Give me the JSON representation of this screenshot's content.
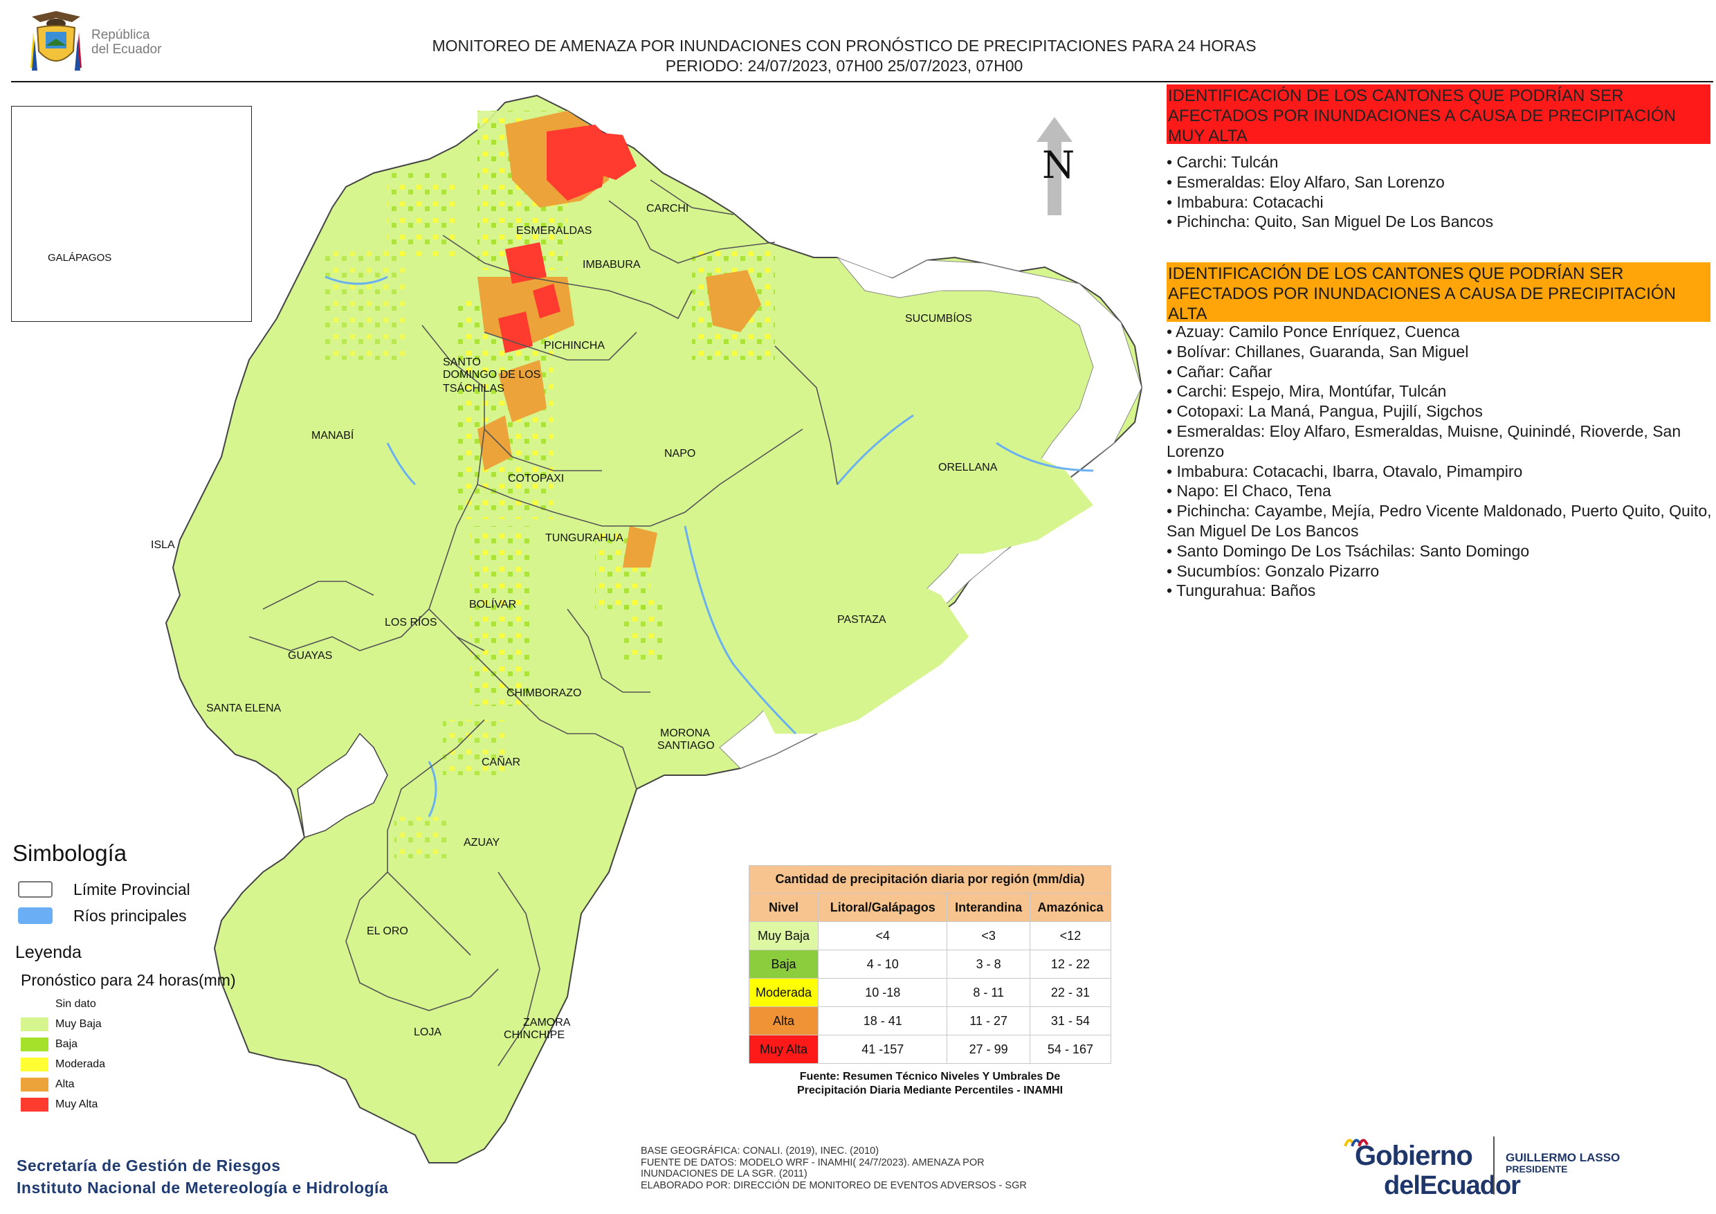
{
  "header": {
    "logo_line1": "República",
    "logo_line2": "del Ecuador",
    "title_line1": "MONITOREO DE AMENAZA POR INUNDACIONES  CON PRONÓSTICO DE  PRECIPITACIONES PARA 24 HORAS",
    "title_line2": "PERIODO: 24/07/2023, 07H00 25/07/2023, 07H00"
  },
  "map": {
    "north_label": "N",
    "inset_label": "GALÁPAGOS",
    "province_labels": {
      "esmeraldas": "ESMERALDAS",
      "carchi": "CARCHI",
      "imbabura": "IMBABURA",
      "sucumbios": "SUCUMBÍOS",
      "pichincha": "PICHINCHA",
      "santo_domingo_1": "SANTO",
      "santo_domingo_2": "DOMINGO DE LOS",
      "santo_domingo_3": "TSÁCHILAS",
      "manabi": "MANABÍ",
      "napo": "NAPO",
      "orellana": "ORELLANA",
      "cotopaxi": "COTOPAXI",
      "isla": "ISLA",
      "tungurahua": "TUNGURAHUA",
      "bolivar": "BOLÍVAR",
      "los_rios": "LOS RÍOS",
      "guayas": "GUAYAS",
      "pastaza": "PASTAZA",
      "chimborazo": "CHIMBORAZO",
      "santa_elena": "SANTA ELENA",
      "morona_1": "MORONA",
      "morona_2": "SANTIAGO",
      "canar": "CAÑAR",
      "azuay": "AZUAY",
      "el_oro": "EL ORO",
      "zamora_1": "ZAMORA",
      "zamora_2": "CHINCHIPE",
      "loja": "LOJA"
    }
  },
  "panels": {
    "muy_alta_header": "IDENTIFICACIÓN DE LOS CANTONES QUE PODRÍAN SER AFECTADOS POR INUNDACIONES  A CAUSA DE PRECIPITACIÓN MUY ALTA",
    "muy_alta_items": [
      "• Carchi: Tulcán",
      "• Esmeraldas: Eloy Alfaro, San Lorenzo",
      "• Imbabura: Cotacachi",
      "• Pichincha: Quito, San Miguel De Los Bancos"
    ],
    "alta_header": "IDENTIFICACIÓN DE LOS CANTONES QUE  PODRÍAN SER AFECTADOS POR INUNDACIONES  A CAUSA DE PRECIPITACIÓN ALTA",
    "alta_items": [
      "• Azuay: Camilo Ponce Enríquez, Cuenca",
      "• Bolívar: Chillanes, Guaranda, San Miguel",
      "• Cañar: Cañar",
      "• Carchi: Espejo, Mira, Montúfar, Tulcán",
      "• Cotopaxi: La Maná, Pangua, Pujilí, Sigchos",
      "• Esmeraldas: Eloy Alfaro, Esmeraldas, Muisne, Quinindé, Rioverde, San Lorenzo",
      "• Imbabura: Cotacachi, Ibarra, Otavalo, Pimampiro",
      "• Napo: El Chaco, Tena",
      "• Pichincha: Cayambe, Mejía, Pedro Vicente Maldonado, Puerto Quito, Quito, San Miguel De Los Bancos",
      "• Santo Domingo De Los Tsáchilas: Santo Domingo",
      "• Sucumbíos: Gonzalo Pizarro",
      "• Tungurahua: Baños"
    ]
  },
  "legend": {
    "simbologia": "Simbología",
    "limite": "Límite Provincial",
    "rios": "Ríos principales",
    "leyenda": "Leyenda",
    "pronostico": "Pronóstico para 24 horas(mm)",
    "items": [
      {
        "label": "Sin dato",
        "color": "#ffffff"
      },
      {
        "label": "Muy Baja",
        "color": "#d7f58f"
      },
      {
        "label": "Baja",
        "color": "#a5e02a"
      },
      {
        "label": "Moderada",
        "color": "#ffff33"
      },
      {
        "label": "Alta",
        "color": "#eba33a"
      },
      {
        "label": "Muy Alta",
        "color": "#ff3a2e"
      }
    ]
  },
  "table": {
    "caption": "Cantidad de precipitación diaria por región (mm/dia)",
    "headers": [
      "Nivel",
      "Litoral/Galápagos",
      "Interandina",
      "Amazónica"
    ],
    "rows": [
      {
        "nivel": "Muy Baja",
        "color": "#ddf7a3",
        "litoral": "<4",
        "interandina": "<3",
        "amazonica": "<12"
      },
      {
        "nivel": "Baja",
        "color": "#8ccd3e",
        "litoral": "4 - 10",
        "interandina": "3 - 8",
        "amazonica": "12 - 22"
      },
      {
        "nivel": "Moderada",
        "color": "#ffff00",
        "litoral": "10 -18",
        "interandina": "8 - 11",
        "amazonica": "22 - 31"
      },
      {
        "nivel": "Alta",
        "color": "#f09236",
        "litoral": "18 - 41",
        "interandina": "11 - 27",
        "amazonica": "31 - 54"
      },
      {
        "nivel": "Muy Alta",
        "color": "#ff1a1a",
        "litoral": "41 -157",
        "interandina": "27 - 99",
        "amazonica": "54 - 167"
      }
    ],
    "fuente_line1": "Fuente: Resumen Técnico Niveles Y Umbrales De",
    "fuente_line2": "Precipitación Diaria Mediante Percentiles - INAMHI"
  },
  "footer": {
    "org1": "Secretaría de Gestión de Riesgos",
    "org2": "Instituto Nacional de Metereología e Hidrología",
    "credits": [
      "BASE GEOGRÁFICA: CONALI. (2019), INEC. (2010)",
      "FUENTE DE DATOS: MODELO WRF - INAMHI( 24/7/2023).  AMENAZA POR",
      "INUNDACIONES DE LA SGR. (2011)",
      "ELABORADO POR: DIRECCIÓN DE MONITOREO DE EVENTOS ADVERSOS - SGR"
    ],
    "gob_line1": "Gobierno",
    "gob_line2": "delEcuador",
    "president_name": "GUILLERMO LASSO",
    "president_title": "PRESIDENTE"
  }
}
